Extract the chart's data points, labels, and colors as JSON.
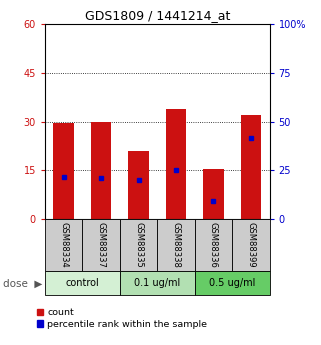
{
  "title": "GDS1809 / 1441214_at",
  "samples": [
    "GSM88334",
    "GSM88337",
    "GSM88335",
    "GSM88338",
    "GSM88336",
    "GSM88399"
  ],
  "group_spans": [
    [
      0,
      1,
      "control",
      "#d4f0d4"
    ],
    [
      2,
      3,
      "0.1 ug/ml",
      "#b2e0b2"
    ],
    [
      4,
      5,
      "0.5 ug/ml",
      "#66cc66"
    ]
  ],
  "bar_values": [
    29.5,
    30.0,
    21.0,
    34.0,
    15.5,
    32.0
  ],
  "blue_dot_values": [
    13.0,
    12.5,
    12.0,
    15.0,
    5.5,
    25.0
  ],
  "ylim_left": [
    0,
    60
  ],
  "ylim_right": [
    0,
    100
  ],
  "yticks_left": [
    0,
    15,
    30,
    45,
    60
  ],
  "yticks_right": [
    0,
    25,
    50,
    75,
    100
  ],
  "ytick_labels_left": [
    "0",
    "15",
    "30",
    "45",
    "60"
  ],
  "ytick_labels_right": [
    "0",
    "25",
    "50",
    "75",
    "100%"
  ],
  "bar_color": "#cc1111",
  "dot_color": "#0000cc",
  "bar_width": 0.55,
  "sample_bg_color": "#cccccc",
  "legend_count": "count",
  "legend_percentile": "percentile rank within the sample"
}
